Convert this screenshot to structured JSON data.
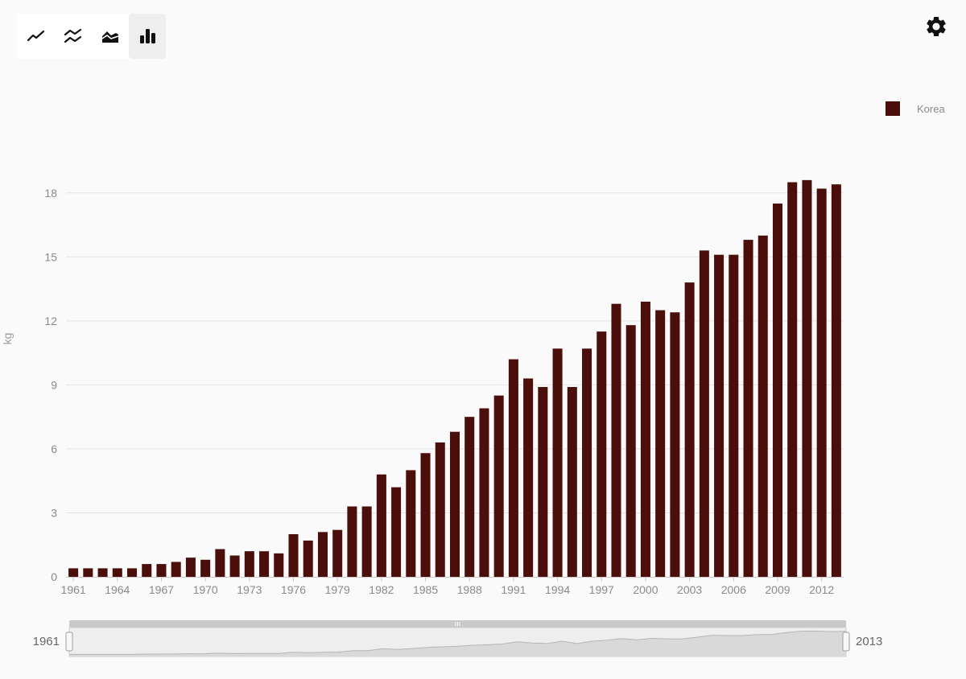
{
  "toolbar": {
    "buttons": [
      {
        "icon": "line-chart-icon",
        "active": false
      },
      {
        "icon": "multi-line-chart-icon",
        "active": false
      },
      {
        "icon": "area-chart-icon",
        "active": false
      },
      {
        "icon": "bar-chart-icon",
        "active": true
      }
    ]
  },
  "settings": {
    "icon": "gear-icon"
  },
  "navigator": {
    "start_label": "1961",
    "end_label": "2013"
  },
  "colors": {
    "bar": "#4a0f0a",
    "grid": "#e4e4e4",
    "axis": "#c8c8c8",
    "nav_fill": "#d9d9d9",
    "nav_bg": "#eeeeee",
    "nav_track": "#c9c9c9"
  },
  "chart_data": {
    "type": "bar",
    "title": "",
    "xlabel": "",
    "ylabel": "kg",
    "ylim": [
      0,
      19.5
    ],
    "yticks": [
      0,
      3,
      6,
      9,
      12,
      15,
      18
    ],
    "xtick_step": 3,
    "grid": true,
    "legend_position": "top-right",
    "categories": [
      "1961",
      "1962",
      "1963",
      "1964",
      "1965",
      "1966",
      "1967",
      "1968",
      "1969",
      "1970",
      "1971",
      "1972",
      "1973",
      "1974",
      "1975",
      "1976",
      "1977",
      "1978",
      "1979",
      "1980",
      "1981",
      "1982",
      "1983",
      "1984",
      "1985",
      "1986",
      "1987",
      "1988",
      "1989",
      "1990",
      "1991",
      "1992",
      "1993",
      "1994",
      "1995",
      "1996",
      "1997",
      "1998",
      "1999",
      "2000",
      "2001",
      "2002",
      "2003",
      "2004",
      "2005",
      "2006",
      "2007",
      "2008",
      "2009",
      "2010",
      "2011",
      "2012",
      "2013"
    ],
    "series": [
      {
        "name": "Korea",
        "color": "#4a0f0a",
        "values": [
          0.4,
          0.4,
          0.4,
          0.4,
          0.4,
          0.6,
          0.6,
          0.7,
          0.9,
          0.8,
          1.3,
          1.0,
          1.2,
          1.2,
          1.1,
          2.0,
          1.7,
          2.1,
          2.2,
          3.3,
          3.3,
          4.8,
          4.2,
          5.0,
          5.8,
          6.3,
          6.8,
          7.5,
          7.9,
          8.5,
          10.2,
          9.3,
          8.9,
          10.7,
          8.9,
          10.7,
          11.5,
          12.8,
          11.8,
          12.9,
          12.5,
          12.4,
          13.8,
          15.3,
          15.1,
          15.1,
          15.8,
          16.0,
          17.5,
          18.5,
          18.6,
          18.2,
          18.4
        ]
      }
    ]
  }
}
